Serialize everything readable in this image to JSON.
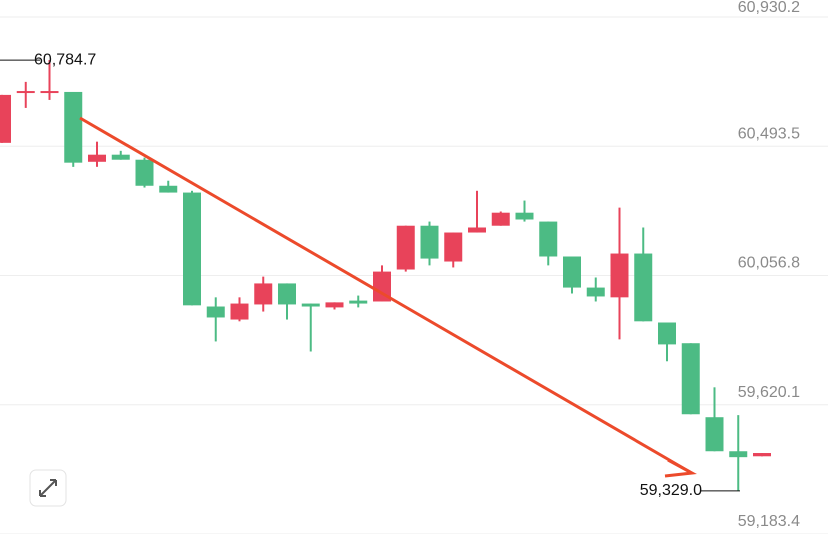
{
  "chart_data": {
    "type": "candlestick",
    "up_color": "#e8435a",
    "down_color": "#4cbb84",
    "ylim": [
      59183.4,
      60930.2
    ],
    "yticks": [
      {
        "value": 60930.2,
        "label": "60,930.2"
      },
      {
        "value": 60493.5,
        "label": "60,493.5"
      },
      {
        "value": 60056.8,
        "label": "60,056.8"
      },
      {
        "value": 59620.1,
        "label": "59,620.1"
      },
      {
        "value": 59183.4,
        "label": "59,183.4"
      }
    ],
    "grid": true,
    "annotations": [
      {
        "value": 60784.7,
        "label": "60,784.7"
      },
      {
        "value": 59329.0,
        "label": "59,329.0"
      }
    ],
    "candles": [
      {
        "open": 60505,
        "high": 60667,
        "low": 60505,
        "close": 60667
      },
      {
        "open": 60677,
        "high": 60711,
        "low": 60623,
        "close": 60680
      },
      {
        "open": 60677,
        "high": 60784.7,
        "low": 60650,
        "close": 60680
      },
      {
        "open": 60677,
        "high": 60677,
        "low": 60424,
        "close": 60438
      },
      {
        "open": 60441,
        "high": 60509,
        "low": 60424,
        "close": 60465
      },
      {
        "open": 60465,
        "high": 60478,
        "low": 60448,
        "close": 60448
      },
      {
        "open": 60448,
        "high": 60455,
        "low": 60354,
        "close": 60360
      },
      {
        "open": 60360,
        "high": 60377,
        "low": 60337,
        "close": 60337
      },
      {
        "open": 60337,
        "high": 60343,
        "low": 59956,
        "close": 59956
      },
      {
        "open": 59952,
        "high": 59983,
        "low": 59834,
        "close": 59915
      },
      {
        "open": 59908,
        "high": 59983,
        "low": 59902,
        "close": 59962
      },
      {
        "open": 59959,
        "high": 60053,
        "low": 59935,
        "close": 60030
      },
      {
        "open": 60030,
        "high": 60030,
        "low": 59908,
        "close": 59959
      },
      {
        "open": 59962,
        "high": 59962,
        "low": 59800,
        "close": 59952
      },
      {
        "open": 59949,
        "high": 59966,
        "low": 59942,
        "close": 59966
      },
      {
        "open": 59972,
        "high": 59989,
        "low": 59949,
        "close": 59962
      },
      {
        "open": 59969,
        "high": 60091,
        "low": 59969,
        "close": 60070
      },
      {
        "open": 60077,
        "high": 60225,
        "low": 60070,
        "close": 60225
      },
      {
        "open": 60225,
        "high": 60239,
        "low": 60091,
        "close": 60114
      },
      {
        "open": 60104,
        "high": 60202,
        "low": 60084,
        "close": 60202
      },
      {
        "open": 60202,
        "high": 60343,
        "low": 60202,
        "close": 60219
      },
      {
        "open": 60225,
        "high": 60273,
        "low": 60225,
        "close": 60269
      },
      {
        "open": 60269,
        "high": 60310,
        "low": 60239,
        "close": 60246
      },
      {
        "open": 60239,
        "high": 60239,
        "low": 60091,
        "close": 60121
      },
      {
        "open": 60121,
        "high": 60121,
        "low": 59996,
        "close": 60016
      },
      {
        "open": 60016,
        "high": 60050,
        "low": 59969,
        "close": 59986
      },
      {
        "open": 59983,
        "high": 60286,
        "low": 59841,
        "close": 60131
      },
      {
        "open": 60131,
        "high": 60219,
        "low": 59902,
        "close": 59902
      },
      {
        "open": 59898,
        "high": 59898,
        "low": 59767,
        "close": 59824
      },
      {
        "open": 59828,
        "high": 59828,
        "low": 59588,
        "close": 59588
      },
      {
        "open": 59578,
        "high": 59679,
        "low": 59463,
        "close": 59463
      },
      {
        "open": 59463,
        "high": 59585,
        "low": 59329.0,
        "close": 59443
      },
      {
        "open": 59446,
        "high": 59457,
        "low": 59446,
        "close": 59457
      }
    ]
  }
}
